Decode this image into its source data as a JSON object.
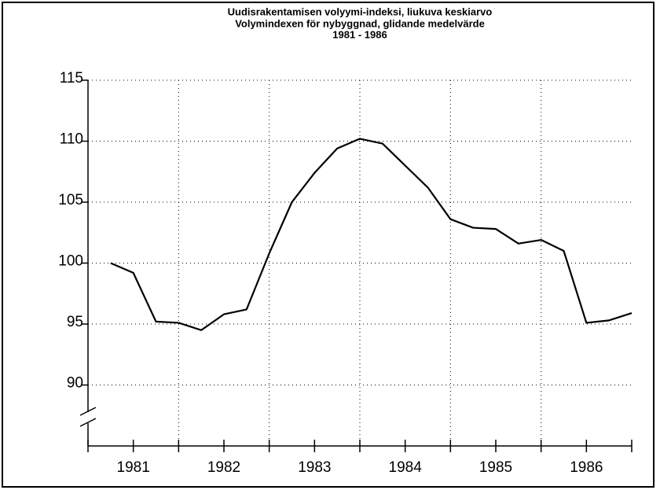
{
  "chart_data": {
    "type": "line",
    "title": [
      "Uudisrakentamisen volyymi-indeksi, liukuva keskiarvo",
      "Volymindexen för nybyggnad, glidande medelvärde",
      "1981 - 1986"
    ],
    "x": [
      1981.25,
      1981.5,
      1981.75,
      1982,
      1982.25,
      1982.5,
      1982.75,
      1983,
      1983.25,
      1983.5,
      1983.75,
      1984,
      1984.25,
      1984.5,
      1984.75,
      1985,
      1985.25,
      1985.5,
      1985.75,
      1986,
      1986.25,
      1986.5,
      1986.75,
      1987
    ],
    "values": [
      100,
      99.2,
      95.2,
      95.1,
      94.5,
      95.8,
      96.2,
      100.8,
      105,
      107.4,
      109.4,
      110.2,
      109.8,
      108,
      106.2,
      103.6,
      102.9,
      102.8,
      101.6,
      101.9,
      101,
      95.1,
      95.3,
      95.9
    ],
    "color": "#000000",
    "xlim": [
      1981,
      1987
    ],
    "xticks": [
      {
        "value": 1981.5,
        "label": "1981"
      },
      {
        "value": 1982.5,
        "label": "1982"
      },
      {
        "value": 1983.5,
        "label": "1983"
      },
      {
        "value": 1984.5,
        "label": "1984"
      },
      {
        "value": 1985.5,
        "label": "1985"
      },
      {
        "value": 1986.5,
        "label": "1986"
      }
    ],
    "ylim": [
      85,
      115
    ],
    "yticks": [
      90,
      95,
      100,
      105,
      110,
      115
    ],
    "grid": true
  }
}
